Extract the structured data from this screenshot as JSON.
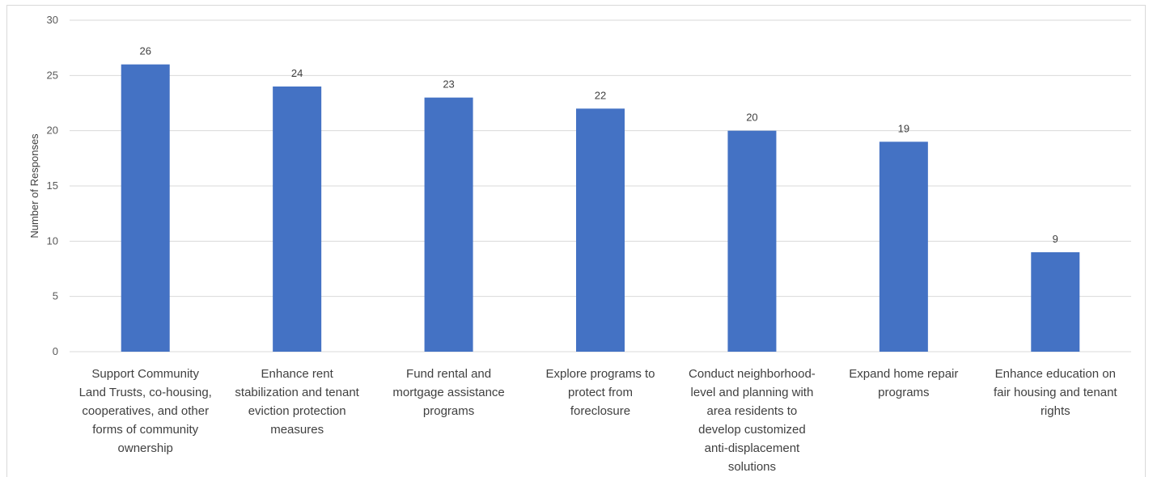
{
  "chart_data": {
    "type": "bar",
    "ylabel": "Number of Responses",
    "ylim": [
      0,
      30
    ],
    "yticks": [
      0,
      5,
      10,
      15,
      20,
      25,
      30
    ],
    "grid": true,
    "bar_color": "#4472c4",
    "categories": [
      [
        "Support Community",
        "Land Trusts, co-housing,",
        "cooperatives, and other",
        "forms of community",
        "ownership"
      ],
      [
        "Enhance rent",
        "stabilization and tenant",
        "eviction protection",
        "measures"
      ],
      [
        "Fund rental and",
        "mortgage assistance",
        "programs"
      ],
      [
        "Explore programs to",
        "protect from",
        "foreclosure"
      ],
      [
        "Conduct neighborhood-",
        "level and planning with",
        "area residents to",
        "develop customized",
        "anti-displacement",
        "solutions"
      ],
      [
        "Expand home repair",
        "programs"
      ],
      [
        "Enhance education on",
        "fair housing and tenant",
        "rights"
      ]
    ],
    "values": [
      26,
      24,
      23,
      22,
      20,
      19,
      9
    ]
  }
}
